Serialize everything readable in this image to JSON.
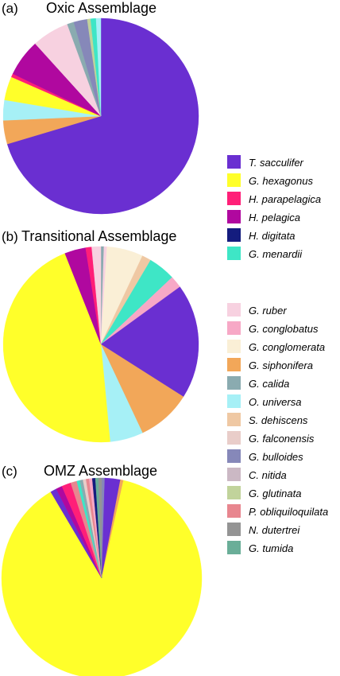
{
  "chart_data": [
    {
      "type": "pie",
      "panel_label": "(a)",
      "title": "Oxic Assemblage",
      "start_angle_deg": 0,
      "slices": [
        {
          "name": "T. sacculifer",
          "value": 63.0
        },
        {
          "name": "G. siphonifera",
          "value": 3.5
        },
        {
          "name": "O. universa",
          "value": 3.0
        },
        {
          "name": "G. hexagonus",
          "value": 3.5
        },
        {
          "name": "H. parapelagica",
          "value": 0.5
        },
        {
          "name": "H. pelagica",
          "value": 5.5
        },
        {
          "name": "G. ruber",
          "value": 5.5
        },
        {
          "name": "G. calida",
          "value": 1.0
        },
        {
          "name": "G. bulloides",
          "value": 2.0
        },
        {
          "name": "G. glutinata",
          "value": 0.5
        },
        {
          "name": "G. menardii",
          "value": 0.8
        },
        {
          "name": "O. universa",
          "value": 0.7
        }
      ]
    },
    {
      "type": "pie",
      "panel_label": "(b)",
      "title": "Transitional Assemblage",
      "start_angle_deg": 0,
      "slices": [
        {
          "name": "G. calida",
          "value": 0.5
        },
        {
          "name": "G. ruber",
          "value": 0.5
        },
        {
          "name": "G. conglomerata",
          "value": 6.0
        },
        {
          "name": "S. dehiscens",
          "value": 1.5
        },
        {
          "name": "G. menardii",
          "value": 4.5
        },
        {
          "name": "G. conglobatus",
          "value": 2.0
        },
        {
          "name": "T. sacculifer",
          "value": 19.0
        },
        {
          "name": "G. siphonifera",
          "value": 9.0
        },
        {
          "name": "O. universa",
          "value": 5.5
        },
        {
          "name": "G. hexagonus",
          "value": 45.5
        },
        {
          "name": "H. pelagica",
          "value": 3.5
        },
        {
          "name": "H. parapelagica",
          "value": 1.0
        },
        {
          "name": "G. ruber",
          "value": 1.5
        }
      ]
    },
    {
      "type": "pie",
      "panel_label": "(c)",
      "title": "OMZ Assemblage",
      "start_angle_deg": 0,
      "slices": [
        {
          "name": "G. bulloides",
          "value": 0.5
        },
        {
          "name": "T. sacculifer",
          "value": 2.5
        },
        {
          "name": "G. siphonifera",
          "value": 0.5
        },
        {
          "name": "G. hexagonus",
          "value": 88.0
        },
        {
          "name": "T. sacculifer",
          "value": 1.0
        },
        {
          "name": "H. pelagica",
          "value": 1.0
        },
        {
          "name": "H. parapelagica",
          "value": 1.5
        },
        {
          "name": "P. obliquiloquilata",
          "value": 1.0
        },
        {
          "name": "G. menardii",
          "value": 0.5
        },
        {
          "name": "G. calida",
          "value": 0.5
        },
        {
          "name": "G. falconensis",
          "value": 0.5
        },
        {
          "name": "P. obliquiloquilata",
          "value": 0.5
        },
        {
          "name": "G. conglobatus",
          "value": 0.5
        },
        {
          "name": "H. digitata",
          "value": 0.5
        },
        {
          "name": "G. tumida",
          "value": 0.5
        },
        {
          "name": "N. dutertrei",
          "value": 0.5
        }
      ]
    }
  ],
  "legend_groups": [
    {
      "entries": [
        {
          "name": "T. sacculifer",
          "color": "#6a2fd1"
        },
        {
          "name": "G. hexagonus",
          "color": "#ffff2a"
        },
        {
          "name": "H. parapelagica",
          "color": "#ff1f78"
        },
        {
          "name": "H. pelagica",
          "color": "#b0089f"
        },
        {
          "name": "H. digitata",
          "color": "#141c7e"
        },
        {
          "name": "G. menardii",
          "color": "#3ee6c6"
        }
      ]
    },
    {
      "entries": [
        {
          "name": "G. ruber",
          "color": "#f7d1e0"
        },
        {
          "name": "G. conglobatus",
          "color": "#f7a8c6"
        },
        {
          "name": "G. conglomerata",
          "color": "#faefd6"
        },
        {
          "name": "G. siphonifera",
          "color": "#f2a759"
        },
        {
          "name": "G. calida",
          "color": "#8aabb0"
        },
        {
          "name": "O. universa",
          "color": "#a6f0f6"
        },
        {
          "name": "S. dehiscens",
          "color": "#efc8a3"
        },
        {
          "name": "G. falconensis",
          "color": "#e9cdc9"
        },
        {
          "name": "G. bulloides",
          "color": "#8688b9"
        },
        {
          "name": "C. nitida",
          "color": "#cbb8c4"
        },
        {
          "name": "G. glutinata",
          "color": "#c1d39b"
        },
        {
          "name": "P. obliquiloquilata",
          "color": "#e8868f"
        },
        {
          "name": "N. dutertrei",
          "color": "#949494"
        },
        {
          "name": "G. tumida",
          "color": "#6aae98"
        }
      ]
    }
  ]
}
